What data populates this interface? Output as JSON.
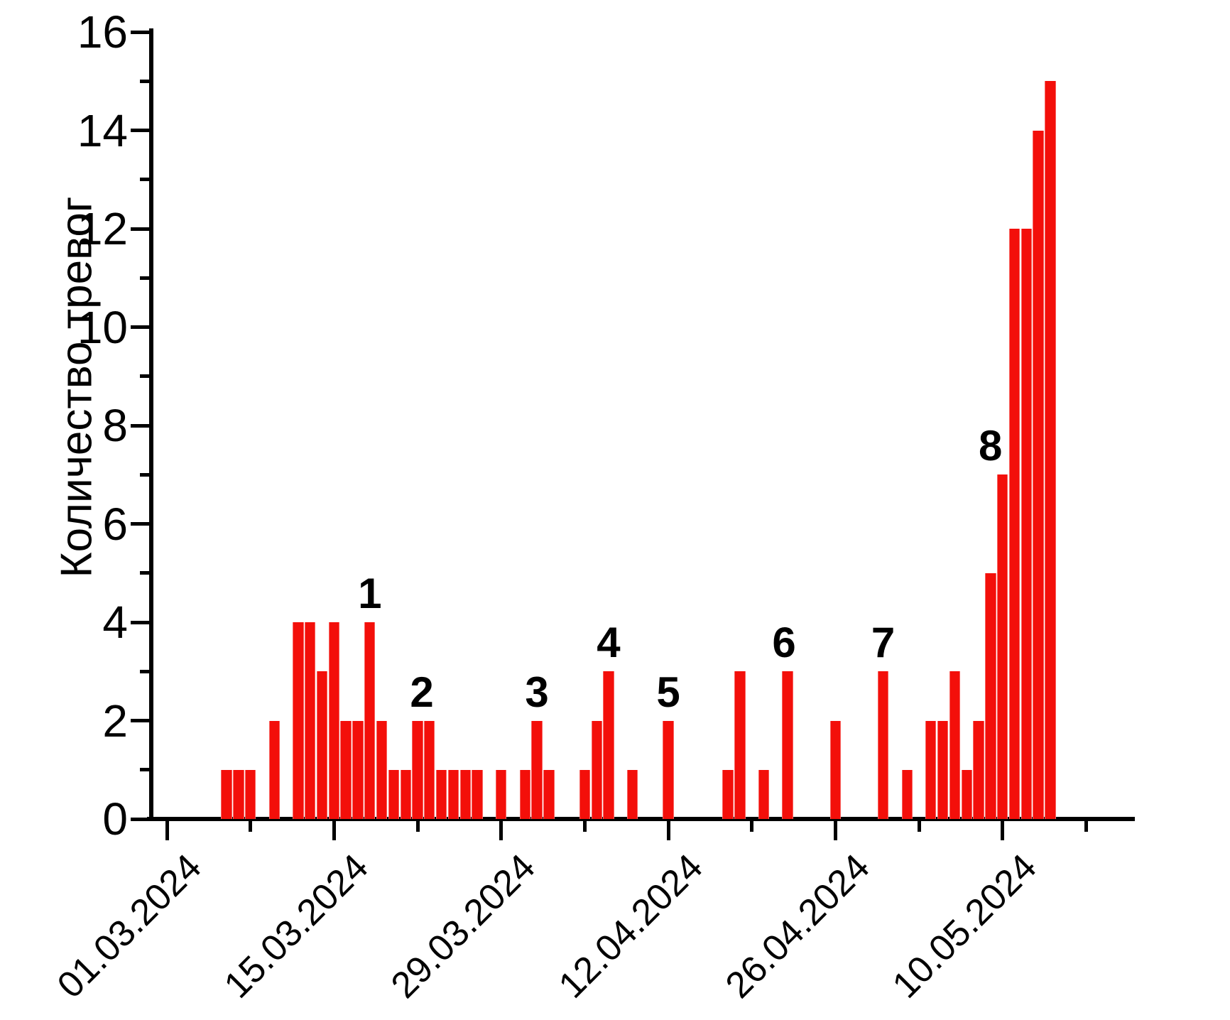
{
  "chart_data": {
    "type": "bar",
    "title": "",
    "xlabel": "",
    "ylabel": "Количество тревог",
    "ylim": [
      0,
      16
    ],
    "y_major_tick_step": 2,
    "y_minor_tick_step": 1,
    "grid": false,
    "legend": false,
    "bar_color": "#f30f0a",
    "axis_color": "#000000",
    "x_major_ticks": [
      "01.03.2024",
      "15.03.2024",
      "29.03.2024",
      "12.04.2024",
      "26.04.2024",
      "10.05.2024"
    ],
    "x_minor_ticks": [
      "08.03.2024",
      "22.03.2024",
      "05.04.2024",
      "19.04.2024",
      "03.05.2024",
      "17.05.2024"
    ],
    "bars": [
      {
        "date": "06.03.2024",
        "value": 1
      },
      {
        "date": "07.03.2024",
        "value": 1
      },
      {
        "date": "08.03.2024",
        "value": 1
      },
      {
        "date": "10.03.2024",
        "value": 2
      },
      {
        "date": "12.03.2024",
        "value": 4
      },
      {
        "date": "13.03.2024",
        "value": 4
      },
      {
        "date": "14.03.2024",
        "value": 3
      },
      {
        "date": "15.03.2024",
        "value": 4
      },
      {
        "date": "16.03.2024",
        "value": 2
      },
      {
        "date": "17.03.2024",
        "value": 2
      },
      {
        "date": "18.03.2024",
        "value": 4
      },
      {
        "date": "19.03.2024",
        "value": 2
      },
      {
        "date": "20.03.2024",
        "value": 1
      },
      {
        "date": "21.03.2024",
        "value": 1
      },
      {
        "date": "22.03.2024",
        "value": 2
      },
      {
        "date": "23.03.2024",
        "value": 2
      },
      {
        "date": "24.03.2024",
        "value": 1
      },
      {
        "date": "25.03.2024",
        "value": 1
      },
      {
        "date": "26.03.2024",
        "value": 1
      },
      {
        "date": "27.03.2024",
        "value": 1
      },
      {
        "date": "29.03.2024",
        "value": 1
      },
      {
        "date": "31.03.2024",
        "value": 1
      },
      {
        "date": "01.04.2024",
        "value": 2
      },
      {
        "date": "02.04.2024",
        "value": 1
      },
      {
        "date": "05.04.2024",
        "value": 1
      },
      {
        "date": "06.04.2024",
        "value": 2
      },
      {
        "date": "07.04.2024",
        "value": 3
      },
      {
        "date": "09.04.2024",
        "value": 1
      },
      {
        "date": "12.04.2024",
        "value": 2
      },
      {
        "date": "17.04.2024",
        "value": 1
      },
      {
        "date": "18.04.2024",
        "value": 3
      },
      {
        "date": "20.04.2024",
        "value": 1
      },
      {
        "date": "22.04.2024",
        "value": 3
      },
      {
        "date": "26.04.2024",
        "value": 2
      },
      {
        "date": "30.04.2024",
        "value": 3
      },
      {
        "date": "02.05.2024",
        "value": 1
      },
      {
        "date": "04.05.2024",
        "value": 2
      },
      {
        "date": "05.05.2024",
        "value": 2
      },
      {
        "date": "06.05.2024",
        "value": 3
      },
      {
        "date": "07.05.2024",
        "value": 1
      },
      {
        "date": "08.05.2024",
        "value": 2
      },
      {
        "date": "09.05.2024",
        "value": 5
      },
      {
        "date": "10.05.2024",
        "value": 7
      },
      {
        "date": "11.05.2024",
        "value": 12
      },
      {
        "date": "12.05.2024",
        "value": 12
      },
      {
        "date": "13.05.2024",
        "value": 14
      },
      {
        "date": "14.05.2024",
        "value": 15
      }
    ],
    "annotations": [
      {
        "label": "1",
        "date": "18.03.2024",
        "dx": 0
      },
      {
        "label": "2",
        "date": "22.03.2024",
        "dx": 6
      },
      {
        "label": "3",
        "date": "01.04.2024",
        "dx": 0
      },
      {
        "label": "4",
        "date": "07.04.2024",
        "dx": 0
      },
      {
        "label": "5",
        "date": "12.04.2024",
        "dx": 0
      },
      {
        "label": "6",
        "date": "22.04.2024",
        "dx": -5
      },
      {
        "label": "7",
        "date": "30.04.2024",
        "dx": 0
      },
      {
        "label": "8",
        "date": "10.05.2024",
        "dx": -17
      }
    ]
  }
}
